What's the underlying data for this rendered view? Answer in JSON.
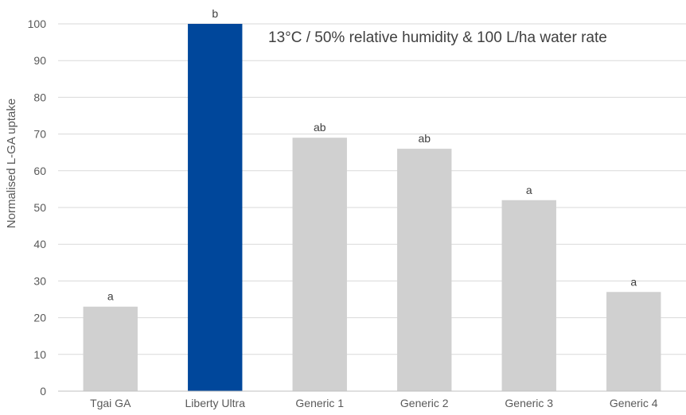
{
  "chart_data": {
    "type": "bar",
    "title": "",
    "xlabel": "",
    "ylabel": "Normalised  L-GA uptake",
    "annotation": "13°C / 50% relative humidity & 100 L/ha water rate",
    "categories": [
      "Tgai GA",
      "Liberty Ultra",
      "Generic 1",
      "Generic 2",
      "Generic 3",
      "Generic 4"
    ],
    "values": [
      23,
      100,
      69,
      66,
      52,
      27
    ],
    "data_labels": [
      "a",
      "b",
      "ab",
      "ab",
      "a",
      "a"
    ],
    "colors": [
      "#d0d0d0",
      "#00479b",
      "#d0d0d0",
      "#d0d0d0",
      "#d0d0d0",
      "#d0d0d0"
    ],
    "ylim": [
      0,
      100
    ],
    "yticks": [
      0,
      10,
      20,
      30,
      40,
      50,
      60,
      70,
      80,
      90,
      100
    ],
    "grid": true,
    "gridline_color": "#d9d9d9",
    "legend": "none"
  }
}
